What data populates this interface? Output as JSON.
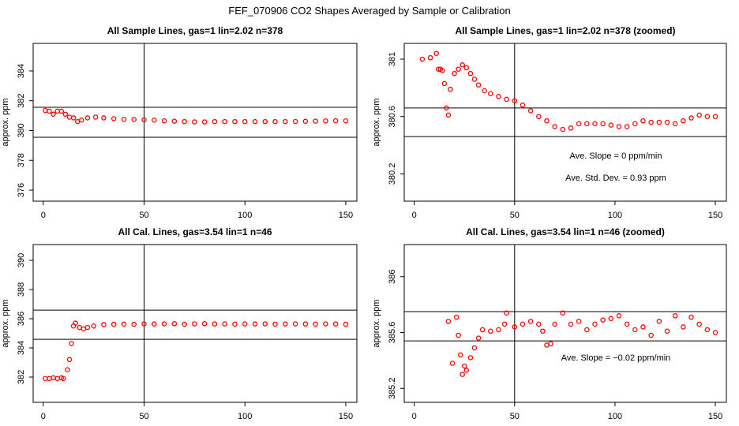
{
  "title": "FEF_070906  CO2 Shapes Averaged by Sample or Calibration",
  "chart_data": [
    {
      "type": "scatter",
      "title": "All Sample Lines, gas=1 lin=2.02 n=378",
      "y_label": "approx. ppm",
      "color": "#ff0000",
      "x": [
        1,
        3,
        5,
        7,
        9,
        11,
        13,
        15,
        17,
        19,
        22,
        26,
        30,
        35,
        40,
        45,
        50,
        55,
        60,
        65,
        70,
        75,
        80,
        85,
        90,
        95,
        100,
        105,
        110,
        115,
        120,
        125,
        130,
        135,
        140,
        145,
        150
      ],
      "values": [
        381.35,
        381.3,
        381.1,
        381.3,
        381.3,
        381.1,
        380.9,
        380.85,
        380.6,
        380.7,
        380.85,
        380.9,
        380.85,
        380.8,
        380.75,
        380.74,
        380.72,
        380.7,
        380.65,
        380.63,
        380.6,
        380.58,
        380.58,
        380.6,
        380.6,
        380.6,
        380.6,
        380.6,
        380.6,
        380.6,
        380.6,
        380.61,
        380.62,
        380.63,
        380.65,
        380.66,
        380.65
      ],
      "xlim": [
        -5,
        155.5
      ],
      "ylim": [
        375.26,
        385.85
      ],
      "xticks": [
        0,
        50,
        100,
        150
      ],
      "yticks": [
        376,
        378,
        380,
        382,
        384
      ],
      "hlines": [
        381.56,
        379.55
      ],
      "vlines": [
        50
      ],
      "annotations": []
    },
    {
      "type": "scatter",
      "title": "All Sample Lines, gas=1 lin=2.02 n=378 (zoomed)",
      "y_label": "approx. ppm",
      "color": "#ff0000",
      "x": [
        4,
        8,
        11,
        12,
        13,
        14,
        15,
        16,
        17,
        18,
        20,
        22,
        24,
        26,
        28,
        30,
        32,
        35,
        38,
        42,
        46,
        50,
        54,
        58,
        62,
        66,
        70,
        74,
        78,
        82,
        86,
        90,
        94,
        98,
        102,
        106,
        110,
        114,
        118,
        122,
        126,
        130,
        134,
        138,
        142,
        146,
        150
      ],
      "values": [
        381.0,
        381.01,
        381.04,
        380.93,
        380.93,
        380.92,
        380.83,
        380.66,
        380.61,
        380.79,
        380.9,
        380.93,
        380.96,
        380.94,
        380.9,
        380.86,
        380.82,
        380.78,
        380.76,
        380.74,
        380.72,
        380.71,
        380.68,
        380.64,
        380.6,
        380.57,
        380.53,
        380.51,
        380.52,
        380.55,
        380.55,
        380.55,
        380.55,
        380.54,
        380.53,
        380.53,
        380.55,
        380.57,
        380.56,
        380.56,
        380.56,
        380.55,
        380.57,
        380.59,
        380.61,
        380.6,
        380.6
      ],
      "xlim": [
        -5,
        155.5
      ],
      "ylim": [
        380.01,
        381.11
      ],
      "xticks": [
        0,
        50,
        100,
        150
      ],
      "yticks": [
        380.2,
        380.6,
        381.0
      ],
      "hlines": [
        380.66,
        380.46
      ],
      "vlines": [
        50
      ],
      "annotations": [
        "Ave. Slope =  0  ppm/min",
        "Ave. Std. Dev. = 0.93  ppm"
      ]
    },
    {
      "type": "scatter",
      "title": "All Cal. Lines, gas=3.54 lin=1 n=46",
      "y_label": "approx. ppm",
      "color": "#ff0000",
      "x": [
        1,
        3,
        5,
        7,
        9,
        10,
        12,
        13,
        14,
        15,
        16,
        18,
        20,
        22,
        25,
        30,
        35,
        40,
        45,
        50,
        55,
        60,
        65,
        70,
        75,
        80,
        85,
        90,
        95,
        100,
        105,
        110,
        115,
        120,
        125,
        130,
        135,
        140,
        145,
        150
      ],
      "values": [
        381.9,
        381.9,
        381.95,
        381.9,
        381.95,
        381.9,
        382.5,
        383.2,
        384.3,
        385.5,
        385.7,
        385.4,
        385.3,
        385.4,
        385.5,
        385.6,
        385.62,
        385.63,
        385.62,
        385.65,
        385.64,
        385.65,
        385.66,
        385.62,
        385.65,
        385.66,
        385.64,
        385.65,
        385.63,
        385.65,
        385.64,
        385.65,
        385.63,
        385.64,
        385.65,
        385.64,
        385.63,
        385.65,
        385.64,
        385.62
      ],
      "xlim": [
        -5,
        155.5
      ],
      "ylim": [
        380.27,
        391.08
      ],
      "xticks": [
        0,
        50,
        100,
        150
      ],
      "yticks": [
        382,
        384,
        386,
        388,
        390
      ],
      "hlines": [
        386.59,
        384.59
      ],
      "vlines": [
        50
      ],
      "annotations": []
    },
    {
      "type": "scatter",
      "title": "All Cal. Lines, gas=3.54 lin=1 n=46 (zoomed)",
      "y_label": "approx. ppm",
      "color": "#ff0000",
      "x": [
        17,
        19,
        21,
        22,
        23,
        24,
        25,
        26,
        28,
        30,
        32,
        34,
        38,
        42,
        45,
        46,
        50,
        54,
        58,
        62,
        64,
        66,
        68,
        70,
        74,
        78,
        82,
        86,
        90,
        94,
        98,
        102,
        106,
        110,
        114,
        118,
        122,
        126,
        130,
        134,
        138,
        142,
        146,
        150
      ],
      "values": [
        385.68,
        385.38,
        385.71,
        385.58,
        385.44,
        385.3,
        385.36,
        385.33,
        385.42,
        385.49,
        385.56,
        385.62,
        385.61,
        385.62,
        385.66,
        385.74,
        385.64,
        385.66,
        385.68,
        385.66,
        385.61,
        385.51,
        385.52,
        385.66,
        385.74,
        385.66,
        385.68,
        385.62,
        385.66,
        385.69,
        385.7,
        385.72,
        385.66,
        385.62,
        385.64,
        385.58,
        385.68,
        385.61,
        385.72,
        385.64,
        385.71,
        385.66,
        385.62,
        385.6
      ],
      "xlim": [
        -5,
        155.5
      ],
      "ylim": [
        385.1,
        386.23
      ],
      "xticks": [
        0,
        50,
        100,
        150
      ],
      "yticks": [
        385.2,
        385.6,
        386.0
      ],
      "hlines": [
        385.75,
        385.54
      ],
      "vlines": [
        50
      ],
      "annotations": [
        "Ave. Slope = −0.02 ppm/min"
      ]
    }
  ]
}
